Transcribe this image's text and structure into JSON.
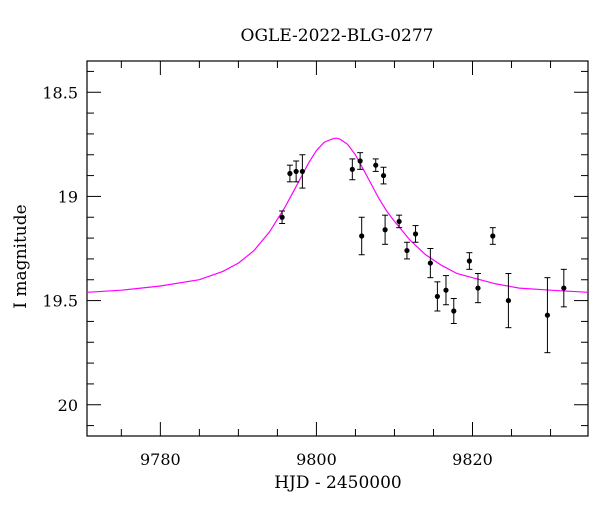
{
  "chart_data": {
    "type": "scatter",
    "title": "OGLE-2022-BLG-0277",
    "xlabel": "HJD - 2450000",
    "ylabel": "I magnitude",
    "xlim": [
      9770.6,
      9834.8
    ],
    "ylim": [
      20.15,
      18.35
    ],
    "y_inverted": true,
    "x_ticks": [
      9780,
      9800,
      9820
    ],
    "y_ticks": [
      18.5,
      19,
      19.5,
      20
    ],
    "y_tick_labels": [
      "18.5",
      "19",
      "19.5",
      "20"
    ],
    "grid": false,
    "colors": {
      "model": "#ff00ff",
      "points": "#000000",
      "axes": "#000000"
    },
    "series": [
      {
        "kind": "points_with_errorbars",
        "x": [
          9795.6,
          9796.6,
          9797.4,
          9798.2,
          9804.6,
          9805.6,
          9805.8,
          9807.6,
          9808.6,
          9808.8,
          9810.6,
          9811.6,
          9812.7,
          9814.6,
          9815.5,
          9816.6,
          9817.6,
          9819.6,
          9820.7,
          9822.6,
          9824.6,
          9829.6,
          9831.7
        ],
        "y": [
          19.1,
          18.89,
          18.88,
          18.88,
          18.87,
          18.83,
          19.19,
          18.85,
          18.9,
          19.16,
          19.12,
          19.26,
          19.18,
          19.32,
          19.48,
          19.45,
          19.55,
          19.31,
          19.44,
          19.19,
          19.5,
          19.57,
          19.44
        ],
        "yerr": [
          0.03,
          0.04,
          0.05,
          0.08,
          0.05,
          0.04,
          0.09,
          0.03,
          0.04,
          0.07,
          0.03,
          0.04,
          0.04,
          0.07,
          0.07,
          0.07,
          0.06,
          0.04,
          0.07,
          0.04,
          0.13,
          0.18,
          0.09
        ]
      },
      {
        "kind": "model_curve",
        "x": [
          9770.6,
          9775,
          9780,
          9785,
          9788,
          9790,
          9792,
          9794,
          9796,
          9797,
          9798,
          9799,
          9800,
          9801,
          9802,
          9802.5,
          9803,
          9804,
          9805,
          9806,
          9807,
          9808,
          9809,
          9810,
          9812,
          9814,
          9816,
          9818,
          9820,
          9823,
          9826,
          9830,
          9834.8
        ],
        "y": [
          19.46,
          19.45,
          19.43,
          19.4,
          19.36,
          19.32,
          19.26,
          19.17,
          19.05,
          18.98,
          18.91,
          18.84,
          18.78,
          18.74,
          18.725,
          18.72,
          18.725,
          18.75,
          18.8,
          18.87,
          18.94,
          19.01,
          19.07,
          19.12,
          19.21,
          19.28,
          19.33,
          19.37,
          19.39,
          19.42,
          19.44,
          19.45,
          19.46
        ]
      }
    ]
  }
}
